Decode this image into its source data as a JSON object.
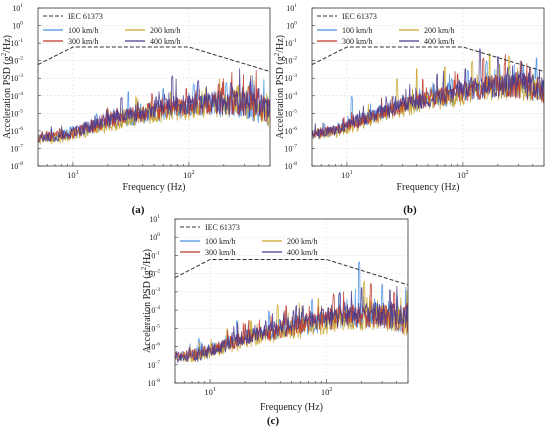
{
  "chart_data": [
    {
      "panel_label": "(a)",
      "type": "line",
      "xlabel": "Frequency (Hz)",
      "ylabel_parts": [
        "Acceleration PSD (g",
        "2",
        "/Hz)"
      ],
      "xscale": "log",
      "yscale": "log",
      "xlim": [
        5,
        500
      ],
      "ylim": [
        1e-08,
        10
      ],
      "legend_position": "top-left",
      "x_ticks": [
        {
          "value": 10,
          "label_base": "10",
          "label_exp": "1"
        },
        {
          "value": 100,
          "label_base": "10",
          "label_exp": "2"
        }
      ],
      "y_ticks": [
        {
          "value": 10,
          "label_base": "10",
          "label_exp": "1"
        },
        {
          "value": 1,
          "label_base": "10",
          "label_exp": "0"
        },
        {
          "value": 0.1,
          "label_base": "10",
          "label_exp": "-1"
        },
        {
          "value": 0.01,
          "label_base": "10",
          "label_exp": "-2"
        },
        {
          "value": 0.001,
          "label_base": "10",
          "label_exp": "-3"
        },
        {
          "value": 0.0001,
          "label_base": "10",
          "label_exp": "-4"
        },
        {
          "value": 1e-05,
          "label_base": "10",
          "label_exp": "-5"
        },
        {
          "value": 1e-06,
          "label_base": "10",
          "label_exp": "-6"
        },
        {
          "value": 1e-07,
          "label_base": "10",
          "label_exp": "-7"
        },
        {
          "value": 1e-08,
          "label_base": "10",
          "label_exp": "-8"
        }
      ],
      "iec_limit": {
        "name": "IEC 61373",
        "color": "#333333",
        "x": [
          5,
          10,
          100,
          500
        ],
        "y": [
          0.006,
          0.06,
          0.06,
          0.0024
        ]
      },
      "series": [
        {
          "name": "100 km/h",
          "color": "#4a90e2",
          "seed": 11,
          "anchors": [
            [
              5,
              4e-07
            ],
            [
              8,
              5e-07
            ],
            [
              12,
              1e-06
            ],
            [
              20,
              3e-06
            ],
            [
              40,
              8e-06
            ],
            [
              80,
              2e-05
            ],
            [
              150,
              3e-05
            ],
            [
              300,
              3e-05
            ],
            [
              500,
              1e-05
            ]
          ],
          "spikes": [
            [
              9.5,
              2e-06
            ],
            [
              16,
              1e-05
            ],
            [
              30,
              0.0002
            ],
            [
              60,
              0.0003
            ],
            [
              110,
              0.0005
            ],
            [
              210,
              0.0006
            ]
          ]
        },
        {
          "name": "200 km/h",
          "color": "#c9a227",
          "seed": 23,
          "anchors": [
            [
              5,
              3e-07
            ],
            [
              8,
              4e-07
            ],
            [
              12,
              8e-07
            ],
            [
              20,
              2e-06
            ],
            [
              40,
              7e-06
            ],
            [
              80,
              1.5e-05
            ],
            [
              150,
              2.5e-05
            ],
            [
              300,
              3e-05
            ],
            [
              500,
              1e-05
            ]
          ],
          "spikes": [
            [
              20,
              2e-05
            ],
            [
              35,
              0.0001
            ],
            [
              70,
              0.0002
            ],
            [
              140,
              0.0003
            ],
            [
              260,
              0.0004
            ]
          ]
        },
        {
          "name": "300 km/h",
          "color": "#c0392b",
          "seed": 37,
          "anchors": [
            [
              5,
              5e-07
            ],
            [
              8,
              6e-07
            ],
            [
              12,
              1e-06
            ],
            [
              20,
              4e-06
            ],
            [
              40,
              1e-05
            ],
            [
              80,
              2.5e-05
            ],
            [
              150,
              3.5e-05
            ],
            [
              300,
              4e-05
            ],
            [
              500,
              1.5e-05
            ]
          ],
          "spikes": [
            [
              24,
              2e-05
            ],
            [
              48,
              0.00015
            ],
            [
              95,
              0.0003
            ],
            [
              180,
              0.0005
            ],
            [
              330,
              0.0004
            ]
          ]
        },
        {
          "name": "400 km/h",
          "color": "#4b3a8c",
          "seed": 53,
          "anchors": [
            [
              5,
              4e-07
            ],
            [
              8,
              5e-07
            ],
            [
              12,
              1.2e-06
            ],
            [
              20,
              5e-06
            ],
            [
              40,
              1.2e-05
            ],
            [
              80,
              3e-05
            ],
            [
              150,
              4e-05
            ],
            [
              300,
              4e-05
            ],
            [
              500,
              1.5e-05
            ]
          ],
          "spikes": [
            [
              26,
              8e-05
            ],
            [
              52,
              0.0001
            ],
            [
              72,
              0.0015
            ],
            [
              120,
              0.0008
            ],
            [
              230,
              0.0006
            ],
            [
              400,
              0.0003
            ]
          ]
        }
      ]
    },
    {
      "panel_label": "(b)",
      "type": "line",
      "xlabel": "Frequency (Hz)",
      "ylabel_parts": [
        "Acceleration PSD (g",
        "2",
        "/Hz)"
      ],
      "xscale": "log",
      "yscale": "log",
      "xlim": [
        5,
        500
      ],
      "ylim": [
        1e-08,
        10
      ],
      "legend_position": "top-left",
      "x_ticks": [
        {
          "value": 10,
          "label_base": "10",
          "label_exp": "1"
        },
        {
          "value": 100,
          "label_base": "10",
          "label_exp": "2"
        }
      ],
      "y_ticks": [
        {
          "value": 10,
          "label_base": "10",
          "label_exp": "1"
        },
        {
          "value": 1,
          "label_base": "10",
          "label_exp": "0"
        },
        {
          "value": 0.1,
          "label_base": "10",
          "label_exp": "-1"
        },
        {
          "value": 0.01,
          "label_base": "10",
          "label_exp": "-2"
        },
        {
          "value": 0.001,
          "label_base": "10",
          "label_exp": "-3"
        },
        {
          "value": 0.0001,
          "label_base": "10",
          "label_exp": "-4"
        },
        {
          "value": 1e-05,
          "label_base": "10",
          "label_exp": "-5"
        },
        {
          "value": 1e-06,
          "label_base": "10",
          "label_exp": "-6"
        },
        {
          "value": 1e-07,
          "label_base": "10",
          "label_exp": "-7"
        },
        {
          "value": 1e-08,
          "label_base": "10",
          "label_exp": "-8"
        }
      ],
      "iec_limit": {
        "name": "IEC 61373",
        "color": "#333333",
        "x": [
          5,
          10,
          100,
          500
        ],
        "y": [
          0.006,
          0.06,
          0.06,
          0.0024
        ]
      },
      "series": [
        {
          "name": "100 km/h",
          "color": "#4a90e2",
          "seed": 61,
          "anchors": [
            [
              5,
              6e-07
            ],
            [
              8,
              1e-06
            ],
            [
              12,
              3e-06
            ],
            [
              20,
              1e-05
            ],
            [
              40,
              4e-05
            ],
            [
              80,
              0.0001
            ],
            [
              150,
              0.0003
            ],
            [
              300,
              0.0004
            ],
            [
              500,
              0.0002
            ]
          ],
          "spikes": [
            [
              9,
              3e-06
            ],
            [
              11,
              0.0001
            ],
            [
              25,
              0.0001
            ],
            [
              80,
              0.001
            ],
            [
              110,
              0.003
            ],
            [
              160,
              0.01
            ],
            [
              250,
              0.005
            ]
          ]
        },
        {
          "name": "200 km/h",
          "color": "#c9a227",
          "seed": 71,
          "anchors": [
            [
              5,
              5e-07
            ],
            [
              8,
              8e-07
            ],
            [
              12,
              2e-06
            ],
            [
              20,
              8e-06
            ],
            [
              40,
              3e-05
            ],
            [
              80,
              8e-05
            ],
            [
              150,
              0.00025
            ],
            [
              300,
              0.0003
            ],
            [
              500,
              0.00015
            ]
          ],
          "spikes": [
            [
              27,
              0.001
            ],
            [
              40,
              0.004
            ],
            [
              70,
              0.005
            ],
            [
              120,
              0.01
            ],
            [
              170,
              0.03
            ],
            [
              250,
              0.02
            ]
          ]
        },
        {
          "name": "300 km/h",
          "color": "#c0392b",
          "seed": 83,
          "anchors": [
            [
              5,
              7e-07
            ],
            [
              8,
              1e-06
            ],
            [
              12,
              3e-06
            ],
            [
              20,
              1e-05
            ],
            [
              40,
              5e-05
            ],
            [
              80,
              0.00012
            ],
            [
              150,
              0.0003
            ],
            [
              300,
              0.0004
            ],
            [
              500,
              0.0002
            ]
          ],
          "spikes": [
            [
              45,
              0.001
            ],
            [
              90,
              0.002
            ],
            [
              150,
              0.015
            ],
            [
              230,
              0.008
            ],
            [
              380,
              0.004
            ]
          ]
        },
        {
          "name": "400 km/h",
          "color": "#4b3a8c",
          "seed": 97,
          "anchors": [
            [
              5,
              6e-07
            ],
            [
              8,
              1.1e-06
            ],
            [
              12,
              3.5e-06
            ],
            [
              20,
              1.2e-05
            ],
            [
              40,
              5e-05
            ],
            [
              80,
              0.00015
            ],
            [
              150,
              0.00035
            ],
            [
              300,
              0.0005
            ],
            [
              500,
              0.0002
            ]
          ],
          "spikes": [
            [
              60,
              0.002
            ],
            [
              105,
              0.004
            ],
            [
              140,
              0.05
            ],
            [
              200,
              0.02
            ],
            [
              320,
              0.01
            ]
          ]
        }
      ]
    },
    {
      "panel_label": "(c)",
      "type": "line",
      "xlabel": "Frequency (Hz)",
      "ylabel_parts": [
        "Acceleration PSD (g",
        "2",
        "/Hz)"
      ],
      "xscale": "log",
      "yscale": "log",
      "xlim": [
        5,
        500
      ],
      "ylim": [
        1e-08,
        10
      ],
      "legend_position": "top-left",
      "x_ticks": [
        {
          "value": 10,
          "label_base": "10",
          "label_exp": "1"
        },
        {
          "value": 100,
          "label_base": "10",
          "label_exp": "2"
        }
      ],
      "y_ticks": [
        {
          "value": 10,
          "label_base": "10",
          "label_exp": "1"
        },
        {
          "value": 1,
          "label_base": "10",
          "label_exp": "0"
        },
        {
          "value": 0.1,
          "label_base": "10",
          "label_exp": "-1"
        },
        {
          "value": 0.01,
          "label_base": "10",
          "label_exp": "-2"
        },
        {
          "value": 0.001,
          "label_base": "10",
          "label_exp": "-3"
        },
        {
          "value": 0.0001,
          "label_base": "10",
          "label_exp": "-4"
        },
        {
          "value": 1e-05,
          "label_base": "10",
          "label_exp": "-5"
        },
        {
          "value": 1e-06,
          "label_base": "10",
          "label_exp": "-6"
        },
        {
          "value": 1e-07,
          "label_base": "10",
          "label_exp": "-7"
        },
        {
          "value": 1e-08,
          "label_base": "10",
          "label_exp": "-8"
        }
      ],
      "iec_limit": {
        "name": "IEC 61373",
        "color": "#333333",
        "x": [
          5,
          10,
          100,
          500
        ],
        "y": [
          0.006,
          0.06,
          0.06,
          0.0024
        ]
      },
      "series": [
        {
          "name": "100 km/h",
          "color": "#4a90e2",
          "seed": 101,
          "anchors": [
            [
              5,
              3e-07
            ],
            [
              8,
              5e-07
            ],
            [
              12,
              1e-06
            ],
            [
              20,
              3e-06
            ],
            [
              40,
              8e-06
            ],
            [
              80,
              2e-05
            ],
            [
              150,
              4e-05
            ],
            [
              300,
              5e-05
            ],
            [
              500,
              2e-05
            ]
          ],
          "spikes": [
            [
              8,
              3e-06
            ],
            [
              17,
              3e-05
            ],
            [
              32,
              0.0001
            ],
            [
              75,
              0.0004
            ],
            [
              190,
              0.05
            ],
            [
              300,
              0.003
            ]
          ]
        },
        {
          "name": "200 km/h",
          "color": "#c9a227",
          "seed": 113,
          "anchors": [
            [
              5,
              2e-07
            ],
            [
              8,
              3e-07
            ],
            [
              12,
              7e-07
            ],
            [
              20,
              2e-06
            ],
            [
              40,
              6e-06
            ],
            [
              80,
              1.5e-05
            ],
            [
              150,
              3e-05
            ],
            [
              300,
              4e-05
            ],
            [
              500,
              2e-05
            ]
          ],
          "spikes": [
            [
              14,
              1e-05
            ],
            [
              22,
              3e-05
            ],
            [
              38,
              0.0002
            ],
            [
              85,
              0.0005
            ],
            [
              210,
              0.004
            ]
          ]
        },
        {
          "name": "300 km/h",
          "color": "#c0392b",
          "seed": 127,
          "anchors": [
            [
              5,
              3e-07
            ],
            [
              8,
              4e-07
            ],
            [
              12,
              9e-07
            ],
            [
              20,
              3e-06
            ],
            [
              40,
              9e-06
            ],
            [
              80,
              2.5e-05
            ],
            [
              150,
              5e-05
            ],
            [
              300,
              6e-05
            ],
            [
              500,
              2.5e-05
            ]
          ],
          "spikes": [
            [
              20,
              2e-05
            ],
            [
              45,
              0.0002
            ],
            [
              115,
              0.0008
            ],
            [
              240,
              0.003
            ],
            [
              380,
              0.001
            ]
          ]
        },
        {
          "name": "400 km/h",
          "color": "#4b3a8c",
          "seed": 139,
          "anchors": [
            [
              5,
              2e-07
            ],
            [
              8,
              3e-07
            ],
            [
              12,
              8e-07
            ],
            [
              20,
              3e-06
            ],
            [
              40,
              1e-05
            ],
            [
              80,
              3e-05
            ],
            [
              150,
              6e-05
            ],
            [
              300,
              7e-05
            ],
            [
              500,
              3e-05
            ]
          ],
          "spikes": [
            [
              30,
              3e-05
            ],
            [
              55,
              0.0002
            ],
            [
              130,
              0.001
            ],
            [
              200,
              0.002
            ],
            [
              350,
              0.0015
            ]
          ]
        }
      ]
    }
  ]
}
